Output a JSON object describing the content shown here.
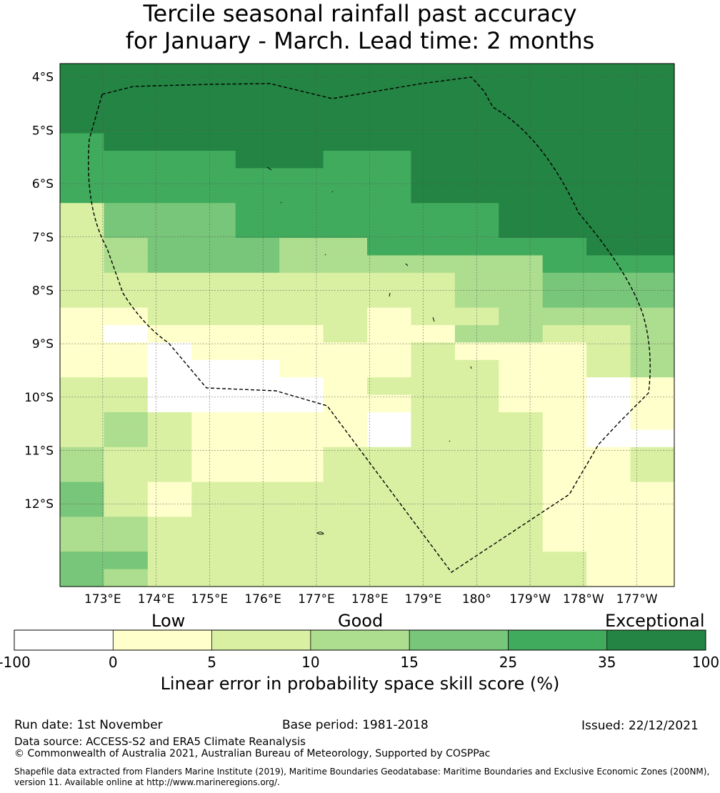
{
  "title": {
    "line1": "Tercile seasonal rainfall past accuracy",
    "line2": "for January - March. Lead time: 2 months"
  },
  "colors": {
    "scale": [
      "#ffffff",
      "#ffffcc",
      "#d9f0a3",
      "#addd8e",
      "#78c679",
      "#41ab5d",
      "#238443"
    ],
    "boundary": "#000000",
    "grid": "#555555"
  },
  "chart_data": {
    "type": "heatmap",
    "xlabel_ticks": [
      "173°E",
      "174°E",
      "175°E",
      "176°E",
      "177°E",
      "178°E",
      "179°E",
      "180°",
      "179°W",
      "178°W",
      "177°W"
    ],
    "ylabel_ticks": [
      "4°S",
      "5°S",
      "6°S",
      "7°S",
      "8°S",
      "9°S",
      "10°S",
      "11°S",
      "12°S"
    ],
    "lon_range_deg_east": [
      172.2,
      183.7
    ],
    "lat_range_deg": [
      -3.75,
      -13.55
    ],
    "cell_size_deg": 0.833,
    "legend": "colorbar below map",
    "color_classes_pct": [
      {
        "index": 0,
        "range": [
          -100,
          0
        ]
      },
      {
        "index": 1,
        "range": [
          0,
          5
        ]
      },
      {
        "index": 2,
        "range": [
          5,
          10
        ]
      },
      {
        "index": 3,
        "range": [
          10,
          15
        ]
      },
      {
        "index": 4,
        "range": [
          15,
          25
        ]
      },
      {
        "index": 5,
        "range": [
          25,
          35
        ]
      },
      {
        "index": 6,
        "range": [
          35,
          100
        ]
      }
    ],
    "grid_class_index_rows_north_to_south": [
      "66666666666666",
      "66666666666666",
      "66666666666666",
      "66666666666666",
      "56666666666666",
      "55556655666666",
      "55555555666666",
      "55555555666666",
      "24445555556666",
      "24445555556666",
      "23444335555566",
      "23444333333555",
      "22222222233444",
      "22222222233444",
      "11222221223333",
      "10111121133223",
      "11011111211123",
      "11000111221123",
      "22000012221101",
      "22000011221101",
      "23211110222101",
      "23211110222100",
      "32211122222112",
      "32211122222112",
      "42122222222111",
      "42122222222111",
      "33222222222111",
      "33222222222111",
      "44222222222211",
      "43222222222211"
    ]
  },
  "colorbar": {
    "quality_labels": {
      "low": "Low",
      "good": "Good",
      "exceptional": "Exceptional"
    },
    "ticks": [
      "-100",
      "0",
      "5",
      "10",
      "15",
      "25",
      "35",
      "100"
    ],
    "title": "Linear error in probability space skill score (%)"
  },
  "footer": {
    "run_date": "Run date: 1st November",
    "base_period": "Base period: 1981-2018",
    "issued": "Issued: 22/12/2021",
    "data_source": "Data source: ACCESS-S2 and ERA5 Climate Reanalysis",
    "copyright": "© Commonwealth of Australia 2021, Australian Bureau of Meteorology, Supported by COSPPac",
    "shapefile_line1": "Shapefile data extracted from Flanders Marine Institute (2019), Maritime Boundaries Geodatabase: Maritime Boundaries and Exclusive Economic Zones (200NM),",
    "shapefile_line2": "version 11. Available online at http://www.marineregions.org/."
  }
}
